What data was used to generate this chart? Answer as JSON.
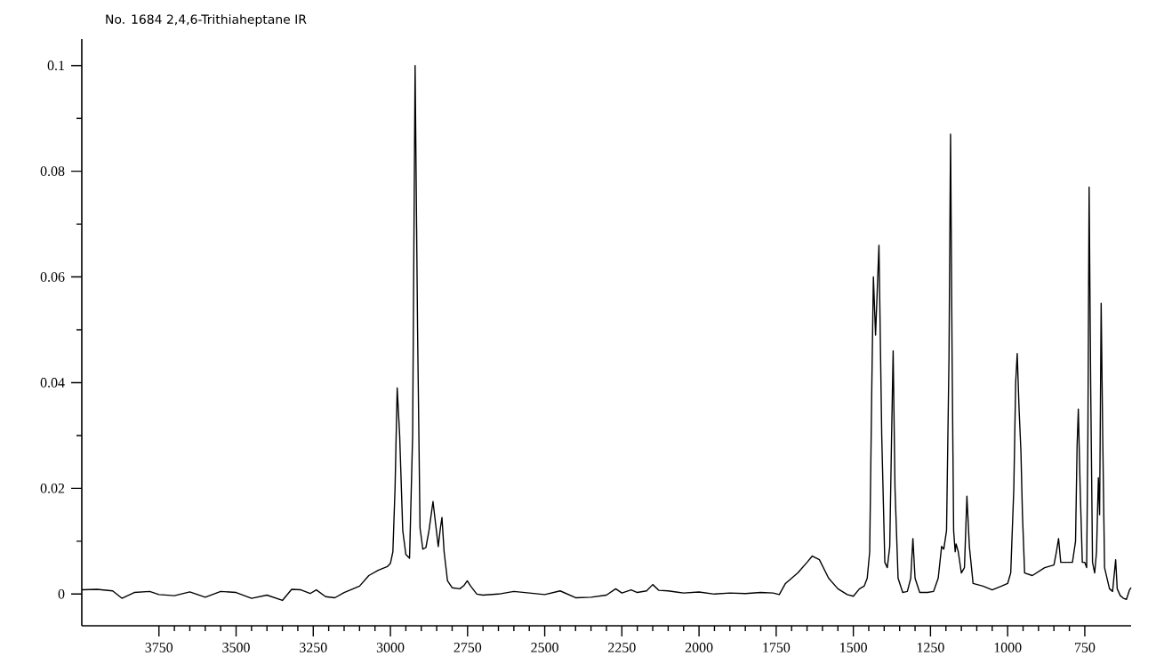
{
  "chart_data": {
    "type": "line",
    "title": "No. 1684 2,4,6-Trithiaheptane IR",
    "xlim": [
      4000,
      600
    ],
    "ylim": [
      -0.006,
      0.105
    ],
    "xticks": [
      3750,
      3500,
      3250,
      3000,
      2750,
      2500,
      2250,
      2000,
      1750,
      1500,
      1250,
      1000,
      750
    ],
    "yticks": [
      0,
      0.02,
      0.04,
      0.06,
      0.08,
      0.1
    ],
    "x": [
      4000,
      3950,
      3900,
      3870,
      3830,
      3780,
      3750,
      3700,
      3650,
      3600,
      3550,
      3500,
      3450,
      3400,
      3350,
      3320,
      3290,
      3260,
      3240,
      3210,
      3180,
      3150,
      3100,
      3070,
      3040,
      3010,
      3000,
      2992,
      2985,
      2978,
      2970,
      2960,
      2950,
      2938,
      2928,
      2920,
      2912,
      2904,
      2895,
      2885,
      2875,
      2862,
      2852,
      2845,
      2838,
      2833,
      2826,
      2815,
      2800,
      2775,
      2762,
      2751,
      2740,
      2720,
      2700,
      2650,
      2600,
      2550,
      2500,
      2450,
      2400,
      2350,
      2300,
      2270,
      2250,
      2220,
      2200,
      2170,
      2150,
      2130,
      2100,
      2050,
      2000,
      1950,
      1900,
      1850,
      1800,
      1760,
      1740,
      1720,
      1680,
      1650,
      1633,
      1610,
      1580,
      1550,
      1520,
      1500,
      1480,
      1465,
      1455,
      1447,
      1440,
      1435,
      1428,
      1417,
      1408,
      1398,
      1390,
      1382,
      1376,
      1371,
      1365,
      1355,
      1340,
      1325,
      1314,
      1307,
      1300,
      1285,
      1260,
      1240,
      1225,
      1214,
      1207,
      1198,
      1190,
      1185,
      1180,
      1175,
      1170,
      1167,
      1160,
      1150,
      1140,
      1132,
      1124,
      1112,
      1080,
      1050,
      1020,
      1000,
      990,
      980,
      974,
      969,
      963,
      957,
      952,
      945,
      920,
      880,
      850,
      842,
      835,
      828,
      810,
      790,
      780,
      775,
      771,
      765,
      758,
      750,
      744,
      740,
      736,
      731,
      725,
      718,
      712,
      706,
      702,
      697,
      692,
      686,
      670,
      660,
      650,
      645,
      635,
      625,
      615,
      605,
      600
    ],
    "series": [
      {
        "color": "#000000",
        "values": [
          0.0008,
          0.0009,
          0.0006,
          -0.0008,
          0.0003,
          0.0005,
          -0.0001,
          -0.0003,
          0.0004,
          -0.0006,
          0.0005,
          0.0003,
          -0.0008,
          -0.0002,
          -0.0012,
          0.0009,
          0.0008,
          0.0001,
          0.0008,
          -0.0005,
          -0.0007,
          0.0003,
          0.0015,
          0.0035,
          0.0045,
          0.0052,
          0.0058,
          0.008,
          0.02,
          0.039,
          0.03,
          0.012,
          0.0075,
          0.0068,
          0.03,
          0.1,
          0.05,
          0.0125,
          0.0085,
          0.0088,
          0.012,
          0.0175,
          0.0125,
          0.009,
          0.0125,
          0.0145,
          0.008,
          0.0025,
          0.0012,
          0.001,
          0.0016,
          0.0025,
          0.0015,
          0.0,
          -0.0002,
          0.0,
          0.0005,
          0.0002,
          -0.0001,
          0.0006,
          -0.0007,
          -0.0006,
          -0.0002,
          0.001,
          0.0002,
          0.0008,
          0.0003,
          0.0006,
          0.0018,
          0.0007,
          0.0006,
          0.0002,
          0.0004,
          0.0,
          0.0002,
          0.0001,
          0.0003,
          0.0002,
          -0.0001,
          0.002,
          0.004,
          0.006,
          0.0072,
          0.0065,
          0.003,
          0.001,
          -0.0001,
          -0.0004,
          0.001,
          0.0015,
          0.003,
          0.008,
          0.04,
          0.06,
          0.049,
          0.066,
          0.03,
          0.006,
          0.005,
          0.009,
          0.03,
          0.046,
          0.02,
          0.003,
          0.0003,
          0.0005,
          0.003,
          0.0105,
          0.003,
          0.0003,
          0.0003,
          0.0005,
          0.003,
          0.009,
          0.0085,
          0.012,
          0.045,
          0.087,
          0.045,
          0.012,
          0.008,
          0.0095,
          0.008,
          0.004,
          0.005,
          0.0185,
          0.009,
          0.002,
          0.0015,
          0.0008,
          0.0015,
          0.002,
          0.004,
          0.02,
          0.04,
          0.0455,
          0.035,
          0.027,
          0.015,
          0.004,
          0.0035,
          0.005,
          0.0055,
          0.008,
          0.0105,
          0.006,
          0.006,
          0.006,
          0.01,
          0.028,
          0.035,
          0.02,
          0.006,
          0.006,
          0.005,
          0.03,
          0.077,
          0.04,
          0.006,
          0.004,
          0.008,
          0.022,
          0.015,
          0.055,
          0.03,
          0.005,
          0.001,
          0.0005,
          0.0065,
          0.001,
          -0.0003,
          -0.0008,
          -0.001,
          0.0008,
          0.0012
        ]
      }
    ]
  }
}
